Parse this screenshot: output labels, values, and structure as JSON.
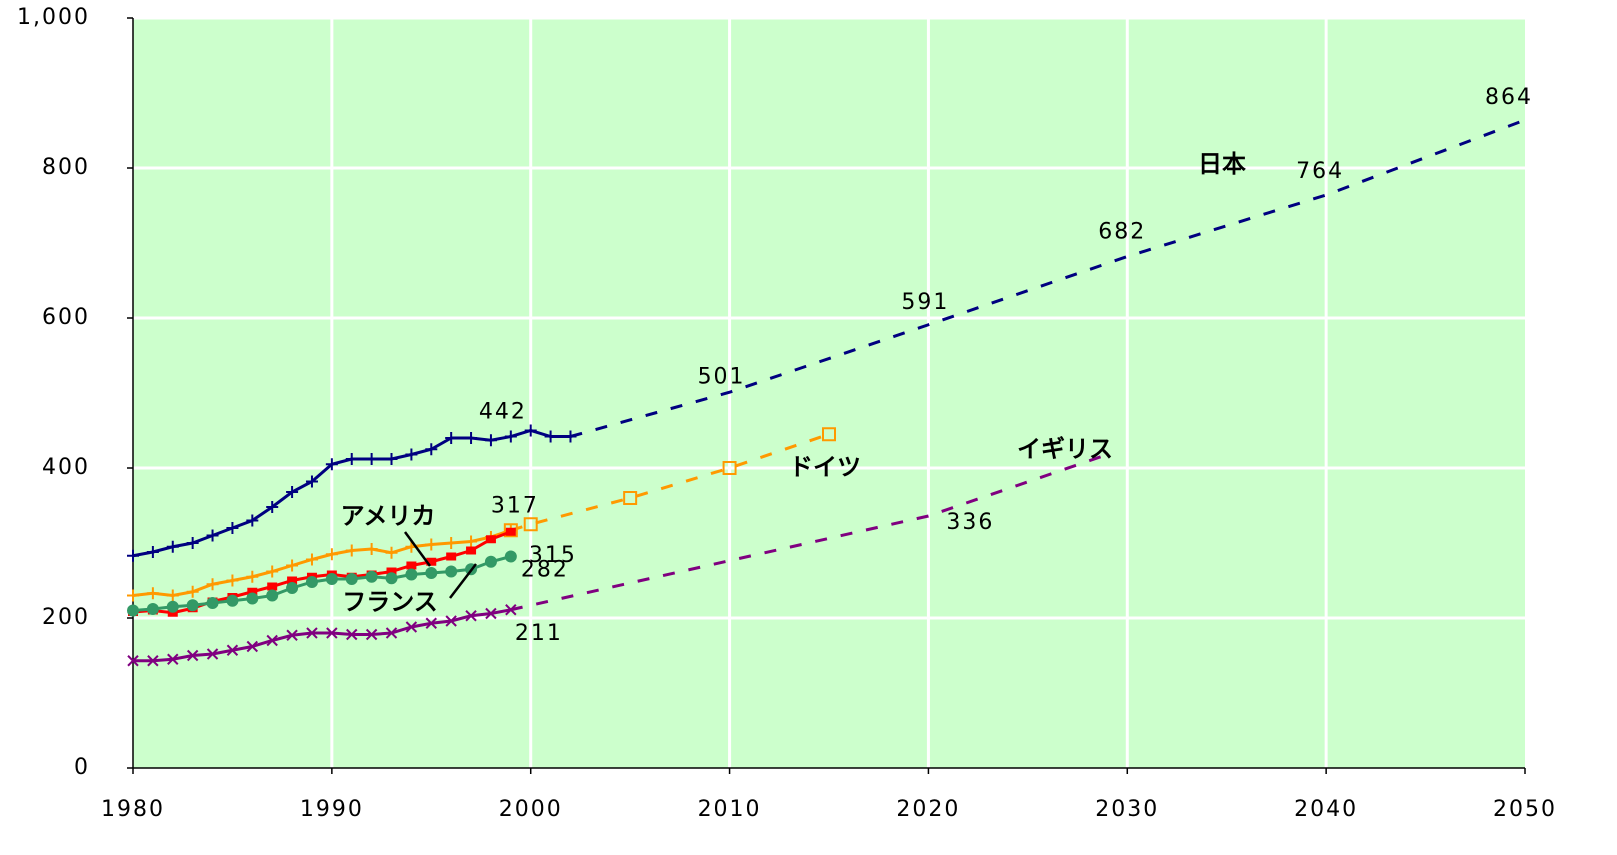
{
  "chart_data": {
    "type": "line",
    "xlim": [
      1980,
      2050
    ],
    "xticks": [
      1980,
      1990,
      2000,
      2010,
      2020,
      2030,
      2040,
      2050
    ],
    "ylim": [
      0,
      1000
    ],
    "yticks": [
      0,
      200,
      400,
      600,
      800,
      {
        "value": 1000,
        "label": "1,000"
      }
    ],
    "grid": true,
    "background": "#ccffcc",
    "series": [
      {
        "color": "#000080",
        "marker": "plus",
        "dashed": false,
        "x": [
          1980,
          1981,
          1982,
          1983,
          1984,
          1985,
          1986,
          1987,
          1988,
          1989,
          1990,
          1991,
          1992,
          1993,
          1994,
          1995,
          1996,
          1997,
          1998,
          1999,
          2000,
          2001,
          2002
        ],
        "values": [
          283,
          288,
          295,
          300,
          310,
          320,
          330,
          348,
          368,
          382,
          405,
          412,
          412,
          412,
          418,
          425,
          440,
          440,
          437,
          442,
          450,
          442,
          442
        ],
        "value_labels": [
          null,
          null,
          null,
          null,
          null,
          null,
          null,
          null,
          null,
          null,
          null,
          null,
          null,
          null,
          null,
          null,
          null,
          null,
          null,
          "442",
          null,
          null,
          null
        ]
      },
      {
        "name": "日本",
        "color": "#000080",
        "marker": "none",
        "dashed": true,
        "x": [
          2002,
          2010,
          2020,
          2030,
          2040,
          2050
        ],
        "values": [
          442,
          501,
          591,
          682,
          764,
          864
        ],
        "value_labels": [
          null,
          "501",
          "591",
          "682",
          "764",
          "864"
        ]
      },
      {
        "color": "#ff9900",
        "marker": "plus",
        "dashed": false,
        "x": [
          1980,
          1981,
          1982,
          1983,
          1984,
          1985,
          1986,
          1987,
          1988,
          1989,
          1990,
          1991,
          1992,
          1993,
          1994,
          1995,
          1996,
          1997,
          1998,
          1999
        ],
        "values": [
          230,
          233,
          230,
          235,
          245,
          250,
          255,
          262,
          270,
          278,
          285,
          290,
          292,
          287,
          295,
          298,
          300,
          302,
          308,
          317
        ],
        "value_labels": [
          null,
          null,
          null,
          null,
          null,
          null,
          null,
          null,
          null,
          null,
          null,
          null,
          null,
          null,
          null,
          null,
          null,
          null,
          null,
          "317"
        ]
      },
      {
        "name": "ドイツ",
        "color": "#ff9900",
        "marker": "square-open",
        "dashed": true,
        "x": [
          1999,
          2000,
          2005,
          2010,
          2015
        ],
        "values": [
          317,
          325,
          360,
          400,
          445
        ]
      },
      {
        "name": "アメリカ",
        "color": "#ff0000",
        "marker": "square",
        "dashed": false,
        "x": [
          1980,
          1981,
          1982,
          1983,
          1984,
          1985,
          1986,
          1987,
          1988,
          1989,
          1990,
          1991,
          1992,
          1993,
          1994,
          1995,
          1996,
          1997,
          1998,
          1999
        ],
        "values": [
          208,
          210,
          207,
          213,
          222,
          228,
          235,
          242,
          250,
          255,
          258,
          255,
          258,
          262,
          270,
          275,
          282,
          290,
          305,
          315
        ],
        "value_labels": [
          null,
          null,
          null,
          null,
          null,
          null,
          null,
          null,
          null,
          null,
          null,
          null,
          null,
          null,
          null,
          null,
          null,
          null,
          null,
          "315"
        ]
      },
      {
        "name": "フランス",
        "color": "#339966",
        "marker": "circle",
        "dashed": false,
        "x": [
          1980,
          1981,
          1982,
          1983,
          1984,
          1985,
          1986,
          1987,
          1988,
          1989,
          1990,
          1991,
          1992,
          1993,
          1994,
          1995,
          1996,
          1997,
          1998,
          1999
        ],
        "values": [
          210,
          212,
          215,
          217,
          220,
          223,
          226,
          230,
          240,
          248,
          252,
          252,
          255,
          253,
          258,
          260,
          262,
          265,
          275,
          282
        ],
        "value_labels": [
          null,
          null,
          null,
          null,
          null,
          null,
          null,
          null,
          null,
          null,
          null,
          null,
          null,
          null,
          null,
          null,
          null,
          null,
          null,
          "282"
        ]
      },
      {
        "color": "#800080",
        "marker": "x",
        "dashed": false,
        "x": [
          1980,
          1981,
          1982,
          1983,
          1984,
          1985,
          1986,
          1987,
          1988,
          1989,
          1990,
          1991,
          1992,
          1993,
          1994,
          1995,
          1996,
          1997,
          1998,
          1999
        ],
        "values": [
          143,
          143,
          145,
          150,
          152,
          157,
          162,
          170,
          177,
          180,
          180,
          178,
          178,
          180,
          188,
          193,
          196,
          203,
          206,
          211
        ],
        "value_labels": [
          null,
          null,
          null,
          null,
          null,
          null,
          null,
          null,
          null,
          null,
          null,
          null,
          null,
          null,
          null,
          null,
          null,
          null,
          null,
          "211"
        ]
      },
      {
        "name": "イギリス",
        "color": "#800080",
        "marker": "none",
        "dashed": true,
        "x": [
          1999,
          2020,
          2029
        ],
        "values": [
          211,
          336,
          418
        ],
        "value_labels": [
          null,
          "336",
          null
        ]
      }
    ]
  }
}
